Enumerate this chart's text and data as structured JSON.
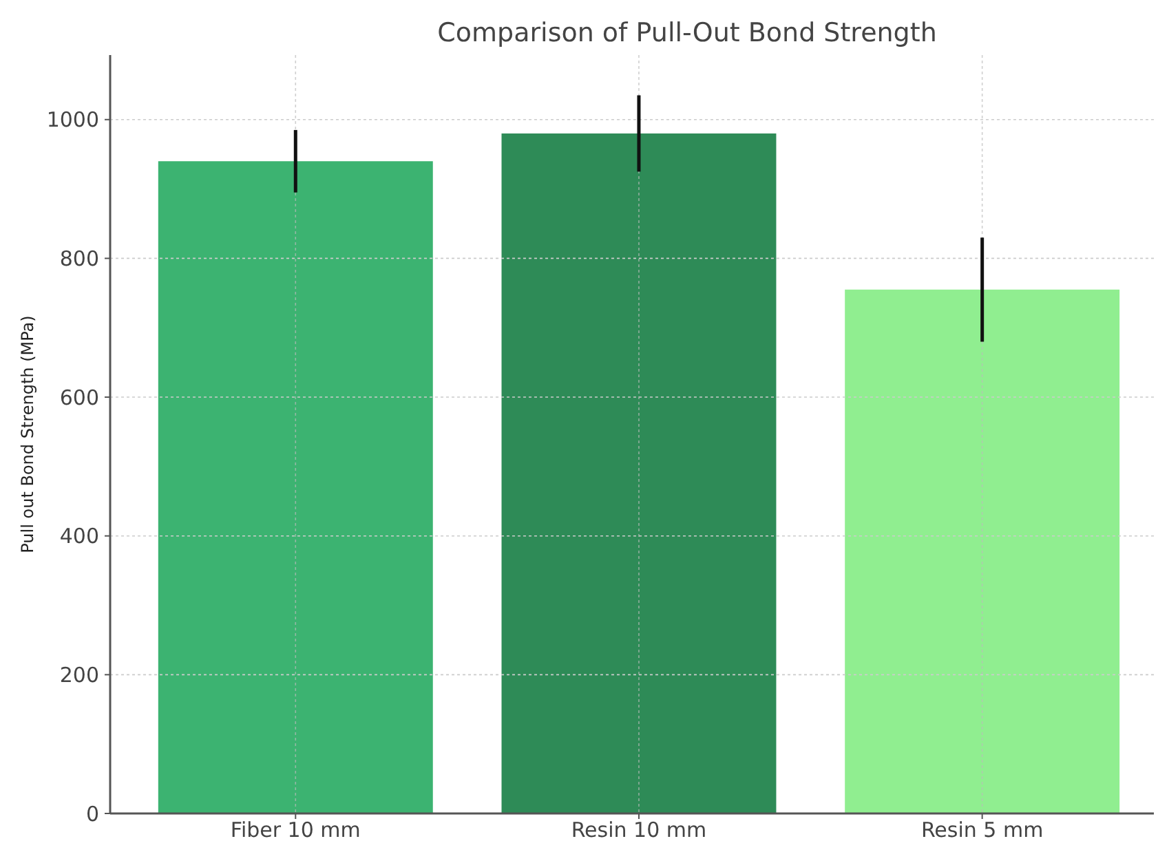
{
  "chart_data": {
    "type": "bar",
    "title": "Comparison of Pull-Out Bond Strength",
    "ylabel": "Pull out Bond Strength (MPa)",
    "categories": [
      "Fiber 10 mm",
      "Resin 10 mm",
      "Resin 5 mm"
    ],
    "values": [
      940,
      980,
      755
    ],
    "colors": [
      "#3cb371",
      "#2e8b57",
      "#90ee90"
    ],
    "errors": [
      45,
      55,
      75
    ],
    "ylim": [
      0,
      1093
    ],
    "yticks": [
      0,
      200,
      400,
      600,
      800,
      1000
    ],
    "grid": true
  }
}
